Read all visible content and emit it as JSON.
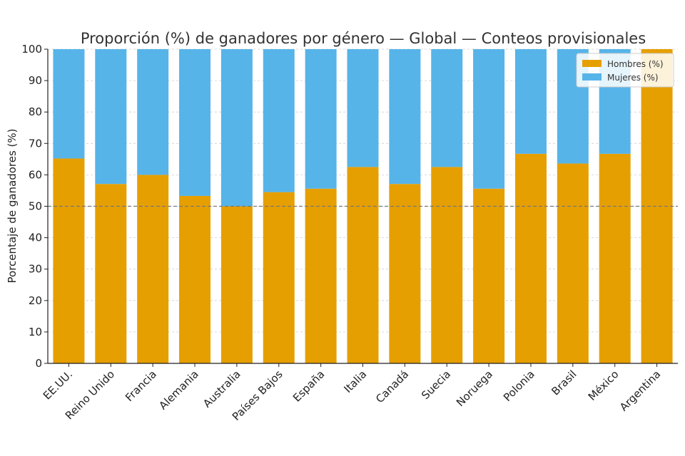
{
  "chart_data": {
    "type": "bar",
    "stacked": true,
    "title": "Proporción (%) de ganadores por género — Global — Conteos provisionales",
    "ylabel": "Porcentaje de ganadores (%)",
    "xlabel": "",
    "ylim": [
      0,
      100
    ],
    "yticks": [
      0,
      10,
      20,
      30,
      40,
      50,
      60,
      70,
      80,
      90,
      100
    ],
    "grid": true,
    "reference_line": 50,
    "legend_position": "top-right",
    "categories": [
      "EE.UU.",
      "Reino Unido",
      "Francia",
      "Alemania",
      "Australia",
      "Países Bajos",
      "España",
      "Italia",
      "Canadá",
      "Suecia",
      "Noruega",
      "Polonia",
      "Brasil",
      "México",
      "Argentina"
    ],
    "series": [
      {
        "name": "Hombres (%)",
        "color": "#E69F00",
        "values": [
          65.2,
          57.1,
          60.0,
          53.3,
          50.0,
          54.5,
          55.6,
          62.5,
          57.1,
          62.5,
          55.6,
          66.7,
          63.6,
          66.7,
          100.0
        ]
      },
      {
        "name": "Mujeres (%)",
        "color": "#56B4E9",
        "values": [
          34.8,
          42.9,
          40.0,
          46.7,
          50.0,
          45.5,
          44.4,
          37.5,
          42.9,
          37.5,
          44.4,
          33.3,
          36.4,
          33.3,
          0.0
        ]
      }
    ]
  }
}
